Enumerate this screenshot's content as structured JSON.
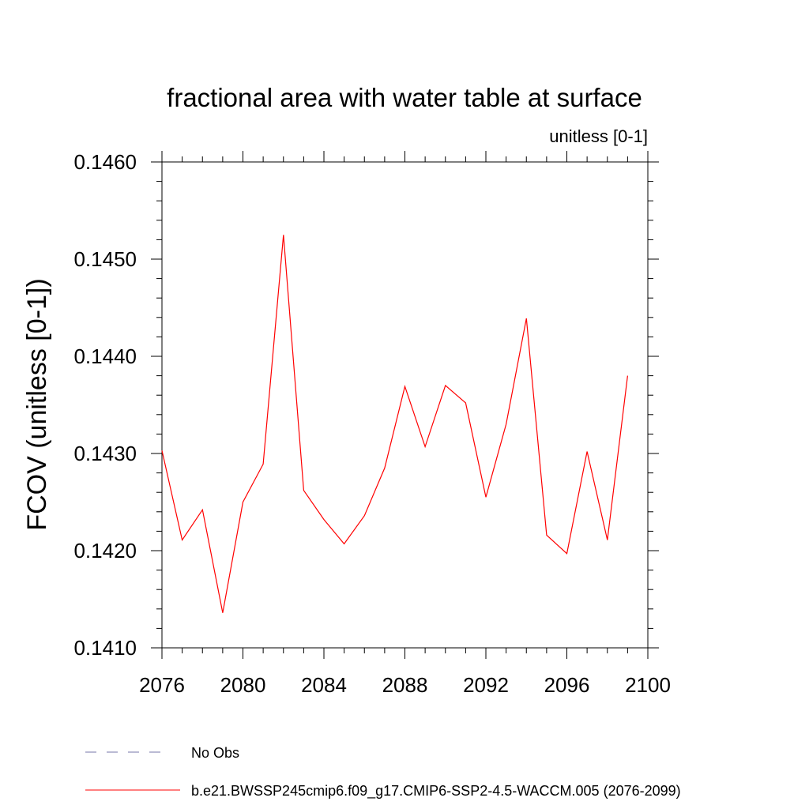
{
  "chart_data": {
    "type": "line",
    "title": "fractional area with water table at surface",
    "units_label": "unitless [0-1]",
    "ylabel": "FCOV  (unitless [0-1])",
    "xlabel": "",
    "xlim": [
      2076,
      2100
    ],
    "ylim": [
      0.141,
      0.146
    ],
    "x_ticks": [
      2076,
      2080,
      2084,
      2088,
      2092,
      2096,
      2100
    ],
    "x_tick_labels": [
      "2076",
      "2080",
      "2084",
      "2088",
      "2092",
      "2096",
      "2100"
    ],
    "y_ticks": [
      0.141,
      0.142,
      0.143,
      0.144,
      0.145,
      0.146
    ],
    "y_tick_labels": [
      "0.1410",
      "0.1420",
      "0.1430",
      "0.1440",
      "0.1450",
      "0.1460"
    ],
    "series": [
      {
        "name": "b.e21.BWSSP245cmip6.f09_g17.CMIP6-SSP2-4.5-WACCM.005 (2076-2099)",
        "color": "#ff0000",
        "x": [
          2076,
          2077,
          2078,
          2079,
          2080,
          2081,
          2082,
          2083,
          2084,
          2085,
          2086,
          2087,
          2088,
          2089,
          2090,
          2091,
          2092,
          2093,
          2094,
          2095,
          2096,
          2097,
          2098,
          2099
        ],
        "values": [
          0.14303,
          0.14211,
          0.14242,
          0.14136,
          0.1425,
          0.14289,
          0.14525,
          0.14262,
          0.14232,
          0.14207,
          0.14236,
          0.14285,
          0.14369,
          0.14307,
          0.1437,
          0.14352,
          0.14255,
          0.1433,
          0.14439,
          0.14216,
          0.14197,
          0.14302,
          0.14211,
          0.1438
        ]
      }
    ],
    "legend": [
      {
        "label": "No Obs",
        "color": "#7777aa",
        "style": "dashed"
      },
      {
        "label": "b.e21.BWSSP245cmip6.f09_g17.CMIP6-SSP2-4.5-WACCM.005 (2076-2099)",
        "color": "#ff0000",
        "style": "solid"
      }
    ]
  }
}
